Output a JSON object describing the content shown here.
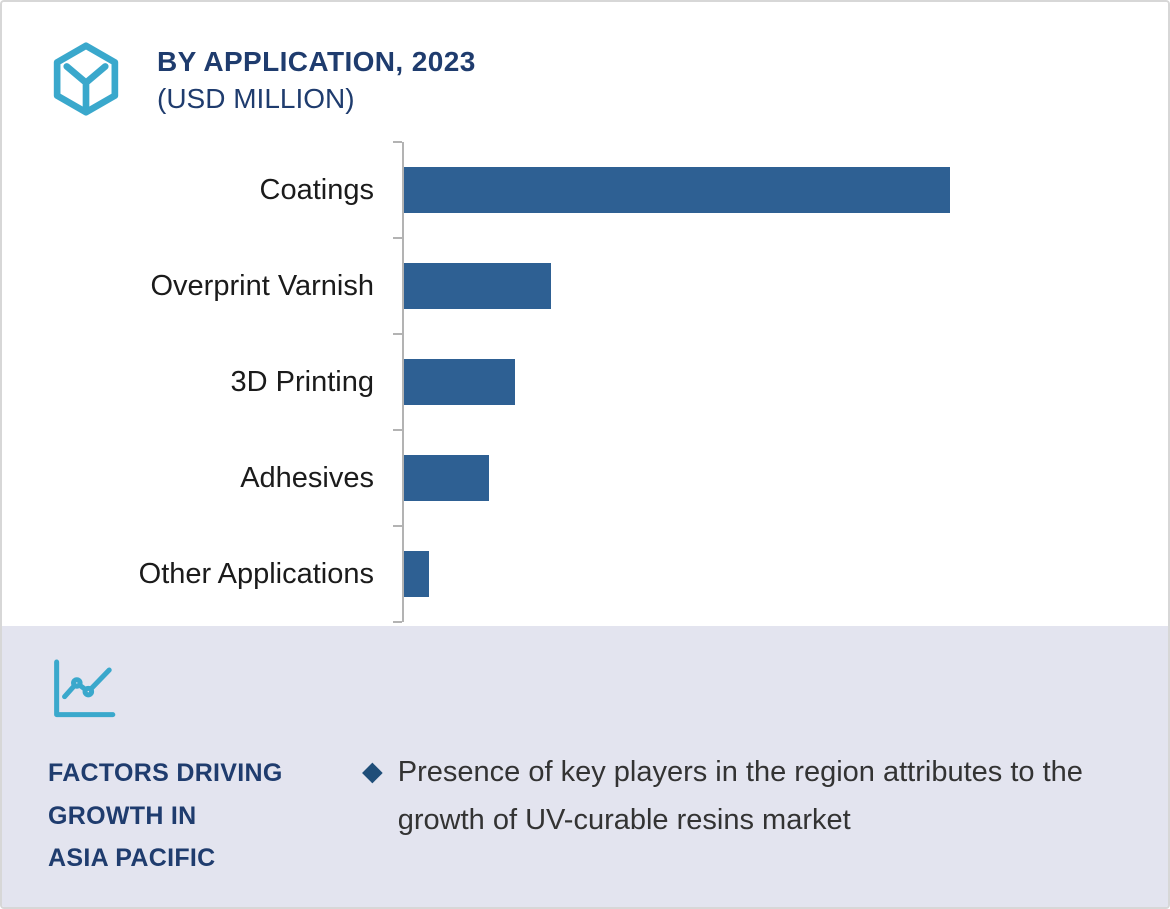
{
  "colors": {
    "accent_teal": "#3aa8cc",
    "navy": "#1f3c6e",
    "bar": "#2e6093",
    "footer_bg": "#e3e4ef",
    "axis": "#b3b3b3",
    "body_text": "#333333",
    "bullet_marker": "#1f4e79"
  },
  "header": {
    "icon": "hexagon-molecule-icon",
    "title": "BY APPLICATION, 2023",
    "subtitle": "(USD MILLION)"
  },
  "chart_data": {
    "type": "bar",
    "orientation": "horizontal",
    "title": "BY APPLICATION, 2023 (USD MILLION)",
    "unit": "USD Million",
    "categories": [
      "Coatings",
      "Overprint Varnish",
      "3D Printing",
      "Adhesives",
      "Other Applications"
    ],
    "values": [
      550,
      148,
      112,
      86,
      25
    ],
    "xlim": [
      0,
      745
    ],
    "bar_color": "#2e6093",
    "grid": false,
    "legend": false,
    "value_labels_shown": false
  },
  "footer": {
    "icon": "line-chart-icon",
    "heading_lines": [
      "FACTORS DRIVING",
      "GROWTH IN",
      "ASIA PACIFIC"
    ],
    "bullets": [
      {
        "marker": "◆",
        "text": "Presence of key players in the region attributes to the growth of UV-curable resins market"
      }
    ]
  }
}
